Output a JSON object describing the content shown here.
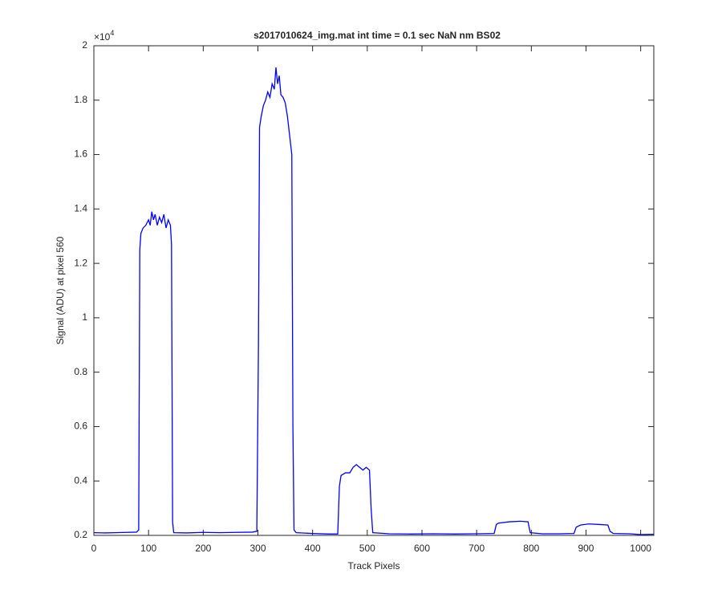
{
  "chart_data": {
    "type": "line",
    "title": "s2017010624_img.mat int time = 0.1 sec  NaN nm BS02",
    "x_label": "Track Pixels",
    "y_label": "Signal (ADU) at pixel 560",
    "y_multiplier": {
      "base": "×10",
      "exponent": "4"
    },
    "xlim": [
      0,
      1024
    ],
    "xticks": [
      0,
      100,
      200,
      300,
      400,
      500,
      600,
      700,
      800,
      900,
      1000
    ],
    "ylim": [
      0.2,
      2
    ],
    "yticks": [
      0.2,
      0.4,
      0.6,
      0.8,
      1,
      1.2,
      1.4,
      1.6,
      1.8,
      2
    ],
    "grid": false,
    "series": [
      {
        "color": "#0000ff",
        "x": [
          0,
          20,
          40,
          60,
          78,
          82,
          84,
          86,
          90,
          95,
          100,
          103,
          106,
          109,
          112,
          116,
          120,
          124,
          128,
          132,
          136,
          140,
          142,
          144,
          146,
          170,
          200,
          230,
          260,
          290,
          298,
          301,
          303,
          306,
          310,
          314,
          318,
          322,
          326,
          330,
          333,
          336,
          339,
          342,
          346,
          350,
          354,
          358,
          362,
          364,
          366,
          370,
          400,
          430,
          446,
          449,
          452,
          460,
          468,
          474,
          480,
          486,
          492,
          498,
          504,
          507,
          510,
          540,
          580,
          620,
          660,
          700,
          732,
          736,
          740,
          760,
          780,
          794,
          798,
          820,
          850,
          878,
          882,
          890,
          905,
          925,
          940,
          944,
          950,
          980,
          1000,
          1024
        ],
        "values": [
          0.21,
          0.209,
          0.21,
          0.211,
          0.212,
          0.22,
          1.25,
          1.31,
          1.33,
          1.34,
          1.36,
          1.34,
          1.39,
          1.36,
          1.38,
          1.34,
          1.37,
          1.35,
          1.38,
          1.33,
          1.36,
          1.34,
          1.27,
          0.25,
          0.21,
          0.209,
          0.211,
          0.21,
          0.211,
          0.212,
          0.215,
          0.9,
          1.7,
          1.74,
          1.78,
          1.8,
          1.83,
          1.81,
          1.86,
          1.84,
          1.92,
          1.86,
          1.89,
          1.82,
          1.81,
          1.79,
          1.74,
          1.67,
          1.6,
          0.6,
          0.22,
          0.21,
          0.207,
          0.205,
          0.205,
          0.38,
          0.42,
          0.43,
          0.43,
          0.45,
          0.46,
          0.45,
          0.44,
          0.45,
          0.44,
          0.3,
          0.21,
          0.206,
          0.205,
          0.206,
          0.205,
          0.206,
          0.207,
          0.24,
          0.245,
          0.25,
          0.252,
          0.25,
          0.21,
          0.206,
          0.206,
          0.207,
          0.23,
          0.238,
          0.242,
          0.24,
          0.238,
          0.215,
          0.207,
          0.206,
          0.203,
          0.204
        ]
      }
    ]
  }
}
